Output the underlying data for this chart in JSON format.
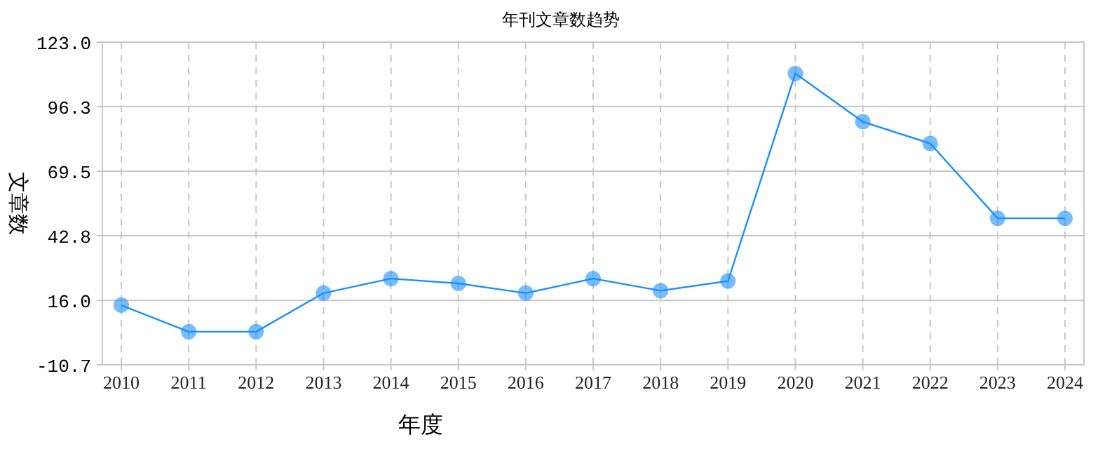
{
  "chart_data": {
    "type": "line",
    "title": "年刊文章数趋势",
    "xlabel": "年度",
    "ylabel": "文章数",
    "categories": [
      "2010",
      "2011",
      "2012",
      "2013",
      "2014",
      "2015",
      "2016",
      "2017",
      "2018",
      "2019",
      "2020",
      "2021",
      "2022",
      "2023",
      "2024"
    ],
    "series": [
      {
        "color": "#1a90ff",
        "values": [
          14,
          3,
          3,
          19,
          25,
          23,
          19,
          25,
          20,
          24,
          110,
          90,
          81,
          50,
          50
        ]
      }
    ],
    "ylim": [
      -10.7,
      123
    ],
    "yticks": [
      -10.7,
      {
        "value": 16,
        "label": "16.0"
      },
      42.8,
      69.5,
      96.3,
      {
        "value": 123,
        "label": "123.0"
      }
    ],
    "grid": true,
    "marker": "circle",
    "line_style": "solid"
  }
}
